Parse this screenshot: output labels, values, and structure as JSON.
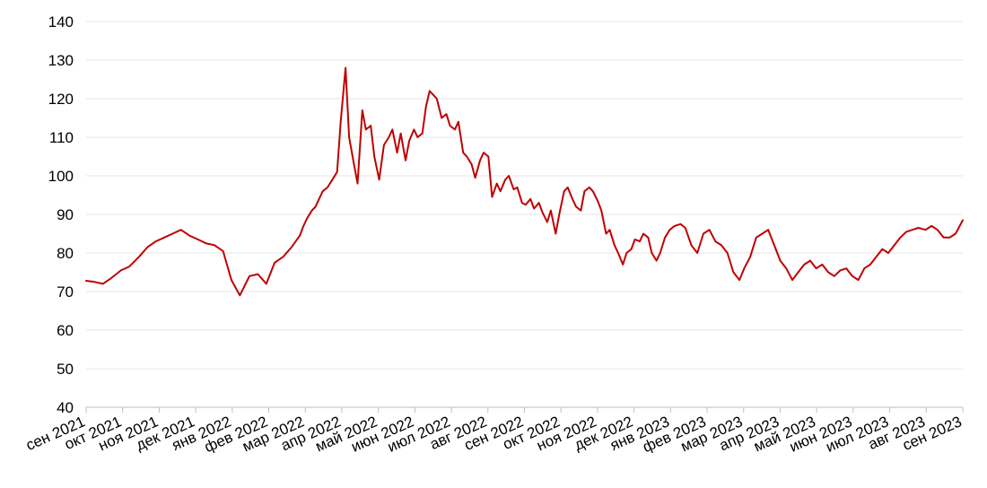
{
  "chart_data": {
    "type": "line",
    "title": "",
    "xlabel": "",
    "ylabel": "",
    "ylim": [
      40,
      140
    ],
    "y_ticks": [
      40,
      50,
      60,
      70,
      80,
      90,
      100,
      110,
      120,
      130,
      140
    ],
    "x_range": [
      "2021-09-01",
      "2023-09-01"
    ],
    "x_tick_labels": [
      "сен 2021",
      "окт 2021",
      "ноя 2021",
      "дек 2021",
      "янв 2022",
      "фев 2022",
      "мар 2022",
      "апр 2022",
      "май 2022",
      "июн 2022",
      "июл 2022",
      "авг 2022",
      "сен 2022",
      "окт 2022",
      "ноя 2022",
      "дек 2022",
      "янв 2023",
      "фев 2023",
      "мар 2023",
      "апр 2023",
      "май 2023",
      "июн 2023",
      "июл 2023",
      "авг 2023",
      "сен 2023"
    ],
    "grid": "horizontal",
    "legend": "none",
    "line_color": "#c00000",
    "series": [
      {
        "dates": [
          "2021-09-01",
          "2021-09-08",
          "2021-09-15",
          "2021-09-22",
          "2021-09-30",
          "2021-10-07",
          "2021-10-15",
          "2021-10-22",
          "2021-10-29",
          "2021-11-05",
          "2021-11-12",
          "2021-11-19",
          "2021-11-26",
          "2021-12-03",
          "2021-12-10",
          "2021-12-17",
          "2021-12-24",
          "2021-12-31",
          "2022-01-07",
          "2022-01-15",
          "2022-01-22",
          "2022-01-29",
          "2022-02-05",
          "2022-02-12",
          "2022-02-19",
          "2022-02-26",
          "2022-03-01",
          "2022-03-04",
          "2022-03-08",
          "2022-03-11",
          "2022-03-14",
          "2022-03-17",
          "2022-03-21",
          "2022-03-25",
          "2022-03-29",
          "2022-04-01",
          "2022-04-05",
          "2022-04-08",
          "2022-04-12",
          "2022-04-15",
          "2022-04-19",
          "2022-04-22",
          "2022-04-26",
          "2022-04-29",
          "2022-05-03",
          "2022-05-07",
          "2022-05-11",
          "2022-05-14",
          "2022-05-18",
          "2022-05-21",
          "2022-05-25",
          "2022-05-28",
          "2022-06-01",
          "2022-06-04",
          "2022-06-08",
          "2022-06-11",
          "2022-06-14",
          "2022-06-17",
          "2022-06-20",
          "2022-06-24",
          "2022-06-28",
          "2022-07-01",
          "2022-07-05",
          "2022-07-08",
          "2022-07-12",
          "2022-07-15",
          "2022-07-19",
          "2022-07-22",
          "2022-07-26",
          "2022-07-29",
          "2022-08-02",
          "2022-08-05",
          "2022-08-09",
          "2022-08-12",
          "2022-08-16",
          "2022-08-19",
          "2022-08-23",
          "2022-08-26",
          "2022-08-30",
          "2022-09-02",
          "2022-09-06",
          "2022-09-09",
          "2022-09-13",
          "2022-09-16",
          "2022-09-20",
          "2022-09-23",
          "2022-09-27",
          "2022-09-30",
          "2022-10-04",
          "2022-10-07",
          "2022-10-11",
          "2022-10-14",
          "2022-10-18",
          "2022-10-21",
          "2022-10-25",
          "2022-10-28",
          "2022-11-01",
          "2022-11-04",
          "2022-11-08",
          "2022-11-11",
          "2022-11-15",
          "2022-11-18",
          "2022-11-22",
          "2022-11-25",
          "2022-11-29",
          "2022-12-02",
          "2022-12-06",
          "2022-12-09",
          "2022-12-13",
          "2022-12-16",
          "2022-12-20",
          "2022-12-23",
          "2022-12-27",
          "2022-12-31",
          "2023-01-04",
          "2023-01-09",
          "2023-01-13",
          "2023-01-18",
          "2023-01-23",
          "2023-01-28",
          "2023-02-02",
          "2023-02-07",
          "2023-02-12",
          "2023-02-17",
          "2023-02-22",
          "2023-02-27",
          "2023-03-03",
          "2023-03-08",
          "2023-03-13",
          "2023-03-18",
          "2023-03-23",
          "2023-03-28",
          "2023-04-02",
          "2023-04-07",
          "2023-04-12",
          "2023-04-17",
          "2023-04-22",
          "2023-04-27",
          "2023-05-02",
          "2023-05-07",
          "2023-05-12",
          "2023-05-17",
          "2023-05-22",
          "2023-05-27",
          "2023-06-01",
          "2023-06-06",
          "2023-06-11",
          "2023-06-16",
          "2023-06-21",
          "2023-06-26",
          "2023-07-01",
          "2023-07-06",
          "2023-07-11",
          "2023-07-16",
          "2023-07-21",
          "2023-07-26",
          "2023-08-01",
          "2023-08-06",
          "2023-08-11",
          "2023-08-16",
          "2023-08-21",
          "2023-08-26",
          "2023-09-01"
        ],
        "values": [
          72.8,
          72.5,
          72.0,
          73.5,
          75.5,
          76.5,
          79.0,
          81.5,
          83.0,
          84.0,
          85.0,
          86.0,
          84.5,
          83.5,
          82.5,
          82.0,
          80.5,
          73.0,
          69.0,
          74.0,
          74.5,
          72.0,
          77.5,
          79.0,
          81.5,
          84.5,
          87.0,
          89.0,
          91.0,
          92.0,
          94.0,
          96.0,
          97.0,
          99.0,
          101.0,
          114.0,
          128.0,
          110.0,
          103.0,
          98.0,
          117.0,
          112.0,
          113.0,
          105.0,
          99.0,
          108.0,
          110.0,
          112.0,
          106.0,
          111.0,
          104.0,
          109.0,
          112.0,
          110.0,
          111.0,
          118.0,
          122.0,
          121.0,
          120.0,
          115.0,
          116.0,
          113.0,
          112.0,
          114.0,
          106.0,
          105.0,
          103.0,
          99.5,
          104.0,
          106.0,
          105.0,
          94.5,
          98.0,
          96.0,
          99.0,
          100.0,
          96.5,
          97.0,
          93.0,
          92.5,
          94.0,
          91.5,
          93.0,
          90.5,
          88.0,
          91.0,
          85.0,
          90.0,
          96.0,
          97.0,
          94.0,
          92.0,
          91.0,
          96.0,
          97.0,
          96.0,
          93.5,
          91.0,
          85.0,
          86.0,
          82.0,
          80.0,
          77.0,
          80.0,
          81.0,
          83.5,
          83.0,
          85.0,
          84.0,
          80.0,
          78.0,
          80.0,
          84.0,
          86.0,
          87.0,
          87.5,
          86.5,
          82.0,
          80.0,
          85.0,
          86.0,
          83.0,
          82.0,
          80.0,
          75.0,
          73.0,
          76.0,
          79.0,
          84.0,
          85.0,
          86.0,
          82.0,
          78.0,
          76.0,
          73.0,
          75.0,
          77.0,
          78.0,
          76.0,
          77.0,
          75.0,
          74.0,
          75.5,
          76.0,
          74.0,
          73.0,
          76.0,
          77.0,
          79.0,
          81.0,
          80.0,
          82.0,
          84.0,
          85.5,
          86.0,
          86.5,
          86.0,
          87.0,
          86.0,
          84.0,
          84.0,
          85.0,
          88.5
        ],
        "name": ""
      }
    ]
  }
}
